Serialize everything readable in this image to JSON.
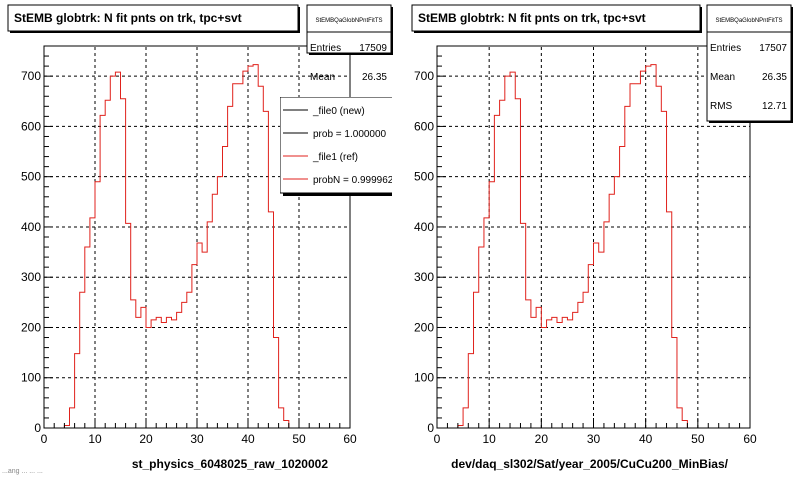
{
  "colors": {
    "histogram": "#e0221c",
    "legend_new": "#000000",
    "legend_ref": "#e0221c",
    "frame": "#000000",
    "grid": "#000000",
    "background": "#ffffff"
  },
  "footer": {
    "truncated_text": "...ang ... ... ..."
  },
  "chart_data": [
    {
      "type": "histogram",
      "title": "StEMB globtrk: N fit pnts on trk, tpc+svt",
      "xlabel": "st_physics_6048025_raw_1020002",
      "ylabel": "",
      "xlim": [
        0,
        60
      ],
      "ylim": [
        0,
        760
      ],
      "xticks": [
        "0",
        "10",
        "20",
        "30",
        "40",
        "50",
        "60"
      ],
      "yticks": [
        "0",
        "100",
        "200",
        "300",
        "400",
        "500",
        "600",
        "700"
      ],
      "grid": true,
      "bin_width": 1,
      "x": [
        0,
        1,
        2,
        3,
        4,
        5,
        6,
        7,
        8,
        9,
        10,
        11,
        12,
        13,
        14,
        15,
        16,
        17,
        18,
        19,
        20,
        21,
        22,
        23,
        24,
        25,
        26,
        27,
        28,
        29,
        30,
        31,
        32,
        33,
        34,
        35,
        36,
        37,
        38,
        39,
        40,
        41,
        42,
        43,
        44,
        45,
        46,
        47,
        48,
        49,
        50,
        51,
        52,
        53,
        54,
        55,
        56,
        57,
        58,
        59
      ],
      "series": [
        {
          "values": [
            0,
            0,
            0,
            0,
            5,
            40,
            148,
            270,
            360,
            418,
            490,
            622,
            652,
            700,
            708,
            655,
            407,
            255,
            220,
            240,
            200,
            215,
            220,
            210,
            220,
            215,
            230,
            250,
            270,
            325,
            368,
            350,
            410,
            465,
            500,
            560,
            640,
            685,
            685,
            710,
            720,
            723,
            680,
            630,
            430,
            180,
            40,
            15,
            0,
            0,
            0,
            0,
            0,
            0,
            0,
            0,
            0,
            0,
            0,
            0
          ]
        }
      ],
      "stats": {
        "name": "StEMBQaGlobNPntFitTS",
        "rows": [
          {
            "label": "Entries",
            "value": "17509"
          },
          {
            "label": "Mean",
            "value": "26.35"
          }
        ]
      },
      "legend": {
        "position": "top-right",
        "items": [
          {
            "label": "_file0 (new)",
            "color": "#000000"
          },
          {
            "label": "prob = 1.000000",
            "color": "#000000"
          },
          {
            "label": "_file1 (ref)",
            "color": "#e0221c"
          },
          {
            "label": "probN = 0.999962",
            "color": "#e0221c"
          }
        ]
      }
    },
    {
      "type": "histogram",
      "title": "StEMB globtrk: N fit pnts on trk, tpc+svt",
      "xlabel": "dev/daq_sl302/Sat/year_2005/CuCu200_MinBias/",
      "ylabel": "",
      "xlim": [
        0,
        60
      ],
      "ylim": [
        0,
        760
      ],
      "xticks": [
        "0",
        "10",
        "20",
        "30",
        "40",
        "50",
        "60"
      ],
      "yticks": [
        "0",
        "100",
        "200",
        "300",
        "400",
        "500",
        "600",
        "700"
      ],
      "grid": true,
      "bin_width": 1,
      "x": [
        0,
        1,
        2,
        3,
        4,
        5,
        6,
        7,
        8,
        9,
        10,
        11,
        12,
        13,
        14,
        15,
        16,
        17,
        18,
        19,
        20,
        21,
        22,
        23,
        24,
        25,
        26,
        27,
        28,
        29,
        30,
        31,
        32,
        33,
        34,
        35,
        36,
        37,
        38,
        39,
        40,
        41,
        42,
        43,
        44,
        45,
        46,
        47,
        48,
        49,
        50,
        51,
        52,
        53,
        54,
        55,
        56,
        57,
        58,
        59
      ],
      "series": [
        {
          "values": [
            0,
            0,
            0,
            0,
            5,
            40,
            148,
            270,
            360,
            418,
            490,
            622,
            652,
            700,
            708,
            655,
            407,
            255,
            220,
            240,
            200,
            215,
            220,
            210,
            220,
            215,
            230,
            250,
            270,
            325,
            368,
            350,
            410,
            465,
            500,
            560,
            640,
            685,
            685,
            710,
            720,
            723,
            680,
            630,
            430,
            180,
            40,
            15,
            0,
            0,
            0,
            0,
            0,
            0,
            0,
            0,
            0,
            0,
            0,
            0
          ]
        }
      ],
      "stats": {
        "name": "StEMBQaGlobNPntFitTS",
        "rows": [
          {
            "label": "Entries",
            "value": "17507"
          },
          {
            "label": "Mean",
            "value": "26.35"
          },
          {
            "label": "RMS",
            "value": "12.71"
          }
        ]
      }
    }
  ]
}
